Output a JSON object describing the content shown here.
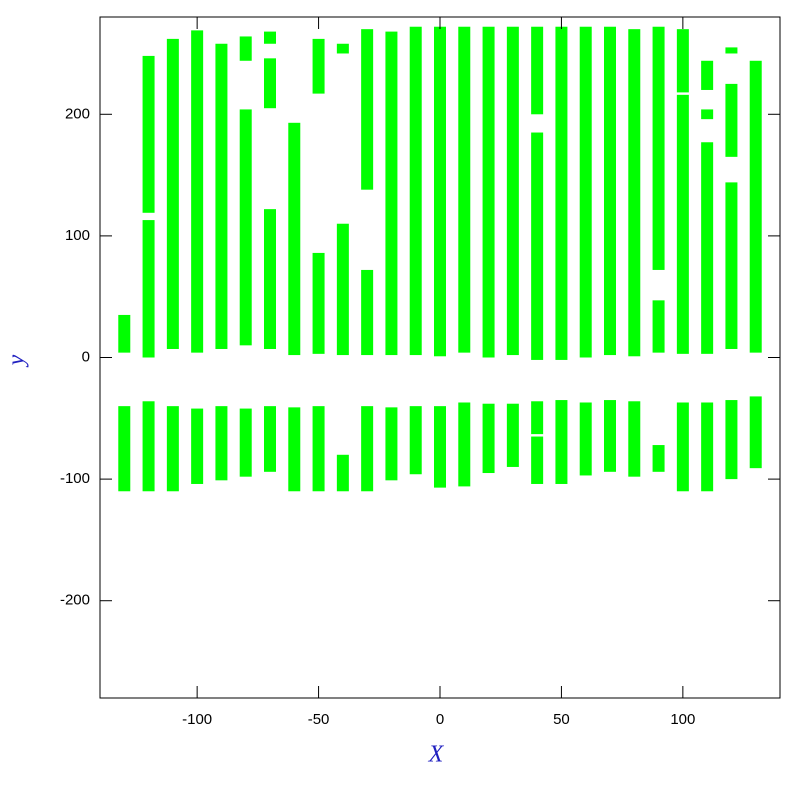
{
  "chart_data": {
    "type": "range",
    "color": "#00ff00",
    "x_label": "X",
    "y_label": "y",
    "xlim": [
      -140,
      140
    ],
    "ylim": [
      -280,
      280
    ],
    "xticks": [
      -100,
      -50,
      0,
      50,
      100
    ],
    "yticks": [
      -200,
      -100,
      0,
      100,
      200
    ],
    "x": [
      -130,
      -120,
      -110,
      -100,
      -90,
      -80,
      -70,
      -60,
      -50,
      -40,
      -30,
      -20,
      -10,
      0,
      10,
      20,
      30,
      40,
      40,
      50,
      60,
      70,
      80,
      90,
      100,
      110,
      120,
      130,
      -130,
      -120,
      -120,
      -110,
      -100,
      -90,
      -80,
      -80,
      -70,
      -70,
      -70,
      -60,
      -50,
      -50,
      -40,
      -40,
      -30,
      -30,
      -20,
      -10,
      0,
      10,
      20,
      30,
      40,
      40,
      50,
      60,
      70,
      80,
      90,
      90,
      100,
      100,
      110,
      110,
      110,
      120,
      120,
      120,
      130
    ],
    "ymin": [
      -110,
      -110,
      -110,
      -104,
      -101,
      -98,
      -94,
      -110,
      -110,
      -110,
      -110,
      -101,
      -96,
      -107,
      -106,
      -95,
      -90,
      -63,
      -104,
      -104,
      -97,
      -94,
      -98,
      -94,
      -110,
      -110,
      -100,
      -91,
      4,
      119,
      0,
      7,
      4,
      7,
      244,
      10,
      258,
      205,
      7,
      2,
      217,
      3,
      250,
      2,
      138,
      2,
      2,
      2,
      1,
      4,
      0,
      2,
      200,
      -2,
      -2,
      0,
      2,
      1,
      72,
      4,
      218,
      3,
      220,
      196,
      3,
      250,
      165,
      7,
      4
    ],
    "ymax": [
      -40,
      -36,
      -40,
      -42,
      -40,
      -42,
      -40,
      -41,
      -40,
      -80,
      -40,
      -41,
      -40,
      -40,
      -37,
      -38,
      -38,
      -36,
      -65,
      -35,
      -37,
      -35,
      -36,
      -72,
      -37,
      -37,
      -35,
      -32,
      35,
      248,
      113,
      262,
      269,
      258,
      264,
      204,
      268,
      246,
      122,
      193,
      262,
      86,
      258,
      110,
      270,
      72,
      268,
      272,
      272,
      272,
      272,
      272,
      272,
      185,
      272,
      272,
      272,
      270,
      272,
      47,
      270,
      216,
      244,
      204,
      177,
      255,
      225,
      144,
      244
    ]
  }
}
